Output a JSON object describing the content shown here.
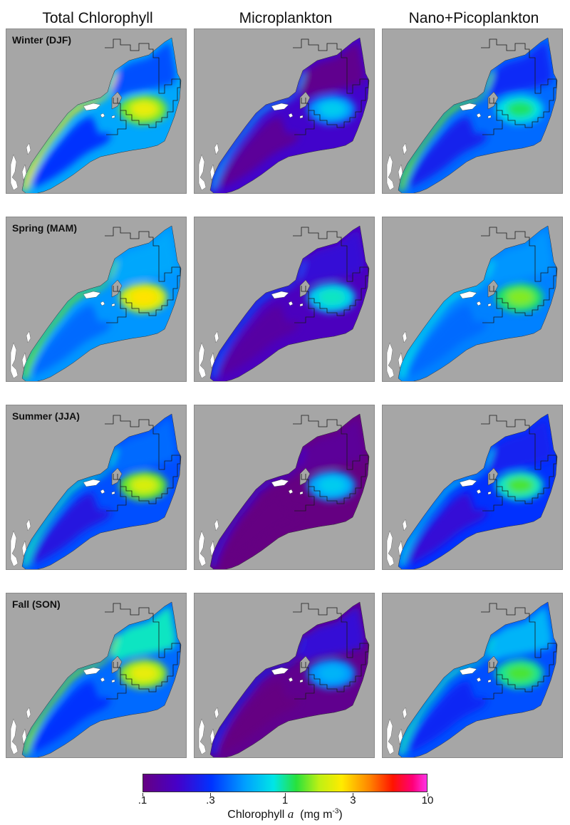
{
  "columns": [
    {
      "id": "total",
      "title": "Total Chlorophyll"
    },
    {
      "id": "micro",
      "title": "Microplankton"
    },
    {
      "id": "nanopico",
      "title": "Nano+Picoplankton"
    }
  ],
  "rows": [
    {
      "id": "winter",
      "label": "Winter (DJF)"
    },
    {
      "id": "spring",
      "label": "Spring (MAM)"
    },
    {
      "id": "summer",
      "label": "Summer (JJA)"
    },
    {
      "id": "fall",
      "label": "Fall (SON)"
    }
  ],
  "panels": {
    "winter": {
      "total": {
        "shelf": 0.55,
        "mid": 0.3,
        "coast": 2.5,
        "gom": 0.35,
        "gb": 1.5,
        "gb2": 2.2
      },
      "micro": {
        "shelf": 0.18,
        "mid": 0.12,
        "coast": 0.5,
        "gom": 0.11,
        "gb": 0.5,
        "gb2": 0.7
      },
      "nanopico": {
        "shelf": 0.4,
        "mid": 0.25,
        "coast": 1.4,
        "gom": 0.28,
        "gb": 0.8,
        "gb2": 1.1
      }
    },
    "spring": {
      "total": {
        "shelf": 0.5,
        "mid": 0.4,
        "coast": 1.4,
        "gom": 0.55,
        "gb": 2.0,
        "gb2": 2.6
      },
      "micro": {
        "shelf": 0.16,
        "mid": 0.13,
        "coast": 0.35,
        "gom": 0.2,
        "gb": 0.7,
        "gb2": 0.9
      },
      "nanopico": {
        "shelf": 0.45,
        "mid": 0.4,
        "coast": 0.8,
        "gom": 0.5,
        "gb": 1.1,
        "gb2": 1.5
      }
    },
    "summer": {
      "total": {
        "shelf": 0.35,
        "mid": 0.22,
        "coast": 0.9,
        "gom": 0.4,
        "gb": 1.4,
        "gb2": 2.0
      },
      "micro": {
        "shelf": 0.1,
        "mid": 0.1,
        "coast": 0.2,
        "gom": 0.12,
        "gb": 0.55,
        "gb2": 0.7
      },
      "nanopico": {
        "shelf": 0.3,
        "mid": 0.2,
        "coast": 0.7,
        "gom": 0.26,
        "gb": 0.9,
        "gb2": 1.3
      }
    },
    "fall": {
      "total": {
        "shelf": 0.4,
        "mid": 0.3,
        "coast": 1.5,
        "gom": 0.9,
        "gb": 1.6,
        "gb2": 2.2
      },
      "micro": {
        "shelf": 0.11,
        "mid": 0.1,
        "coast": 0.25,
        "gom": 0.2,
        "gb": 0.5,
        "gb2": 0.6
      },
      "nanopico": {
        "shelf": 0.35,
        "mid": 0.27,
        "coast": 0.9,
        "gom": 0.6,
        "gb": 1.0,
        "gb2": 1.3
      }
    }
  },
  "colorbar": {
    "min": 0.1,
    "max": 10,
    "scale": "log",
    "ticks": [
      {
        "value": 0.1,
        "label": ".1"
      },
      {
        "value": 0.3,
        "label": ".3"
      },
      {
        "value": 1,
        "label": "1"
      },
      {
        "value": 3,
        "label": "3"
      },
      {
        "value": 10,
        "label": "10"
      }
    ],
    "label_prefix": "Chlorophyll ",
    "label_var": "a",
    "label_units": "(mg m",
    "label_exp": "-3",
    "label_close": ")"
  },
  "colors": {
    "land": "#a6a6a6",
    "panel_border": "#8a8a8a",
    "boundary": "#1a1a1a"
  }
}
